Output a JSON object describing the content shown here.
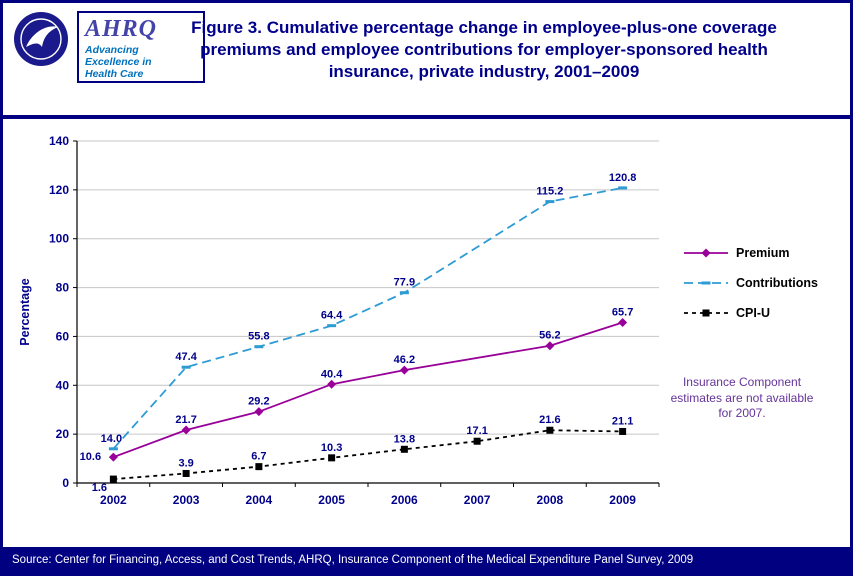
{
  "header": {
    "title": "Figure 3. Cumulative percentage change in employee-plus-one coverage premiums and employee contributions for employer-sponsored health insurance, private industry, 2001–2009",
    "ahrq": {
      "acronym": "AHRQ",
      "tagline": "Advancing Excellence in Health Care"
    }
  },
  "chart_data": {
    "type": "line",
    "title": "Figure 3. Cumulative percentage change in employee-plus-one coverage premiums and employee contributions for employer-sponsored health insurance, private industry, 2001–2009",
    "categories": [
      "2002",
      "2003",
      "2004",
      "2005",
      "2006",
      "2007",
      "2008",
      "2009"
    ],
    "xlabel": "",
    "ylabel": "Percentage",
    "ylim": [
      0,
      140
    ],
    "ytick_step": 20,
    "grid": true,
    "legend_position": "right",
    "note": "Insurance Component estimates are not available for 2007.",
    "series": [
      {
        "name": "Premium",
        "color": "#990099",
        "dash": "solid",
        "dash_pattern": "",
        "marker": "diamond",
        "values": [
          10.6,
          21.7,
          29.2,
          40.4,
          46.2,
          null,
          56.2,
          65.7
        ],
        "labels": [
          "10.6",
          "21.7",
          "29.2",
          "40.4",
          "46.2",
          "",
          "56.2",
          "65.7"
        ],
        "label_offsets": {
          "0": [
            -23,
            3
          ]
        }
      },
      {
        "name": "Contributions",
        "color": "#2E9BD5",
        "dash": "dashed",
        "dash_pattern": "9,5",
        "marker": "tick",
        "values": [
          14.0,
          47.4,
          55.8,
          64.4,
          77.9,
          null,
          115.2,
          120.8
        ],
        "labels": [
          "14.0",
          "47.4",
          "55.8",
          "64.4",
          "77.9",
          "",
          "115.2",
          "120.8"
        ],
        "label_offsets": {
          "0": [
            -2,
            -7
          ]
        }
      },
      {
        "name": "CPI-U",
        "color": "#000000",
        "dash": "dashed",
        "dash_pattern": "4,4",
        "marker": "square",
        "values": [
          1.6,
          3.9,
          6.7,
          10.3,
          13.8,
          17.1,
          21.6,
          21.1
        ],
        "labels": [
          "1.6",
          "3.9",
          "6.7",
          "10.3",
          "13.8",
          "17.1",
          "21.6",
          "21.1"
        ],
        "label_offsets": {
          "0": [
            -14,
            12
          ]
        }
      }
    ]
  },
  "footer": {
    "source": "Source: Center for Financing, Access, and Cost Trends, AHRQ, Insurance Component of the Medical Expenditure Panel Survey, 2009"
  }
}
